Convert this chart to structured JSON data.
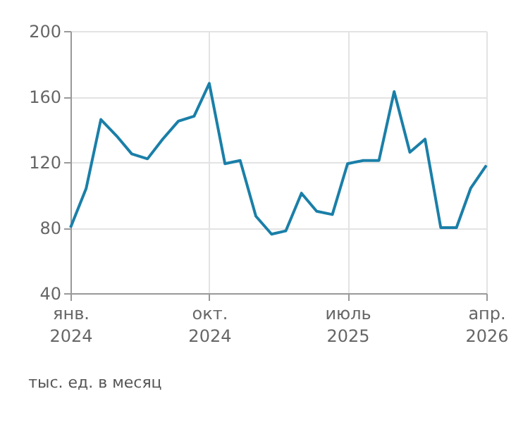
{
  "chart_data": {
    "type": "line",
    "x": [
      "2024-01",
      "2024-02",
      "2024-03",
      "2024-04",
      "2024-05",
      "2024-06",
      "2024-07",
      "2024-08",
      "2024-09",
      "2024-10",
      "2024-11",
      "2024-12",
      "2025-01",
      "2025-02",
      "2025-03",
      "2025-04",
      "2025-05",
      "2025-06",
      "2025-07",
      "2025-08",
      "2025-09",
      "2025-10",
      "2025-11",
      "2025-12",
      "2026-01",
      "2026-02",
      "2026-03",
      "2026-04"
    ],
    "series": [
      {
        "color": "#1a7fa8",
        "values": [
          80,
          104,
          146,
          136,
          125,
          122,
          134,
          145,
          148,
          168,
          119,
          121,
          87,
          76,
          78,
          101,
          90,
          88,
          119,
          121,
          121,
          163,
          126,
          134,
          80,
          80,
          104,
          118
        ]
      }
    ],
    "xlim": [
      "2024-01",
      "2026-04"
    ],
    "xticks": [
      {
        "value": "2024-01",
        "label": "янв. 2024"
      },
      {
        "value": "2024-10",
        "label": "окт. 2024"
      },
      {
        "value": "2025-07",
        "label": "июль 2025"
      },
      {
        "value": "2026-04",
        "label": "апр. 2026"
      }
    ],
    "ylim": [
      40,
      200
    ],
    "yticks": [
      40,
      80,
      120,
      160,
      200
    ],
    "grid": true,
    "annotations": [
      "тыс. ед. в месяц"
    ]
  }
}
